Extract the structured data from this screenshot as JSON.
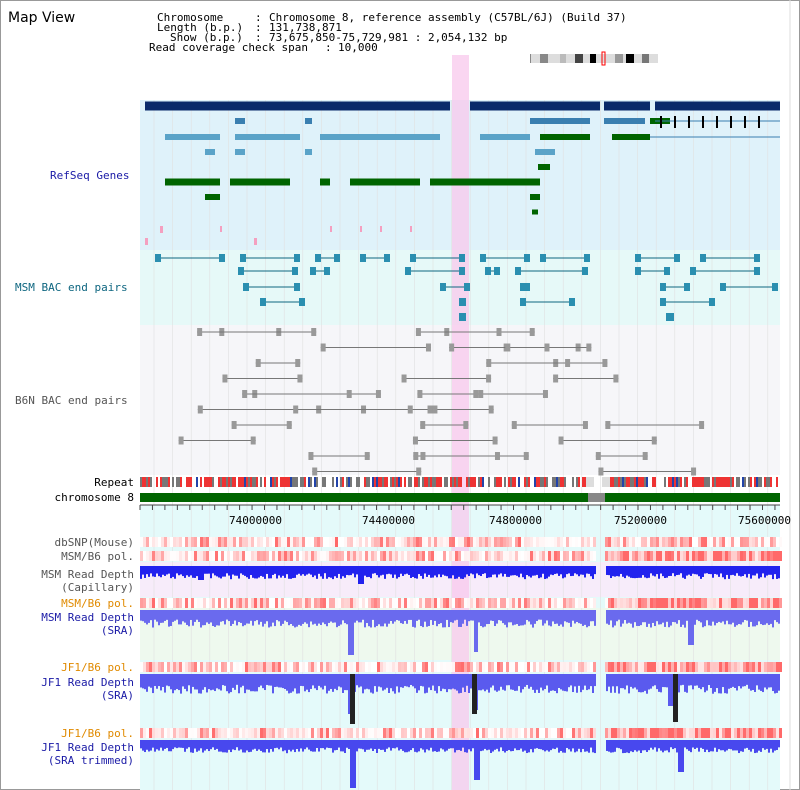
{
  "header": {
    "title": "Map View",
    "chromosome_key": "Chromosome",
    "chromosome_val": "Chromosome 8, reference assembly (C57BL/6J) (Build 37)",
    "length_key": "Length (b.p.)",
    "length_val": "131,738,871",
    "show_key": "Show (b.p.)",
    "show_val": "73,675,850-75,729,981 : 2,054,132 bp",
    "span_key": "Read coverage check span",
    "span_val": "10,000"
  },
  "tracks": {
    "refseq": "RefSeq Genes",
    "msm_bac": "MSM BAC end pairs",
    "b6n_bac": "B6N BAC end pairs",
    "repeat": "Repeat",
    "chromosome": "chromosome 8",
    "dbsnp": "dbSNP(Mouse)",
    "msm_b6_pol_1": "MSM/B6 pol.",
    "msm_depth_cap_1": "MSM Read Depth",
    "msm_depth_cap_2": "(Capillary)",
    "msm_b6_pol_2": "MSM/B6 pol.",
    "msm_depth_sra_1": "MSM Read Depth",
    "msm_depth_sra_2": "(SRA)",
    "jf1_b6_pol_1": "JF1/B6 pol.",
    "jf1_depth_sra_1": "JF1 Read Depth",
    "jf1_depth_sra_2": "(SRA)",
    "jf1_b6_pol_2": "JF1/B6 pol.",
    "jf1_depth_trim_1": "JF1 Read Depth",
    "jf1_depth_trim_2": "(SRA trimmed)"
  },
  "axis": {
    "ticks": [
      "74000000",
      "74400000",
      "74800000",
      "75200000",
      "75600000"
    ]
  },
  "colors": {
    "refseq_bg": "#dff2fa",
    "msm_bg": "#e6f9f8",
    "b6n_bg": "#f6f6f9",
    "refseq_label": "#1a1aa6",
    "msm_label": "#0e6680",
    "b6n_label": "#555555",
    "pol_label": "#e08a00",
    "depth_label": "#1a1aa6",
    "highlight": "#f8c8ec",
    "chrom": "#006400"
  }
}
